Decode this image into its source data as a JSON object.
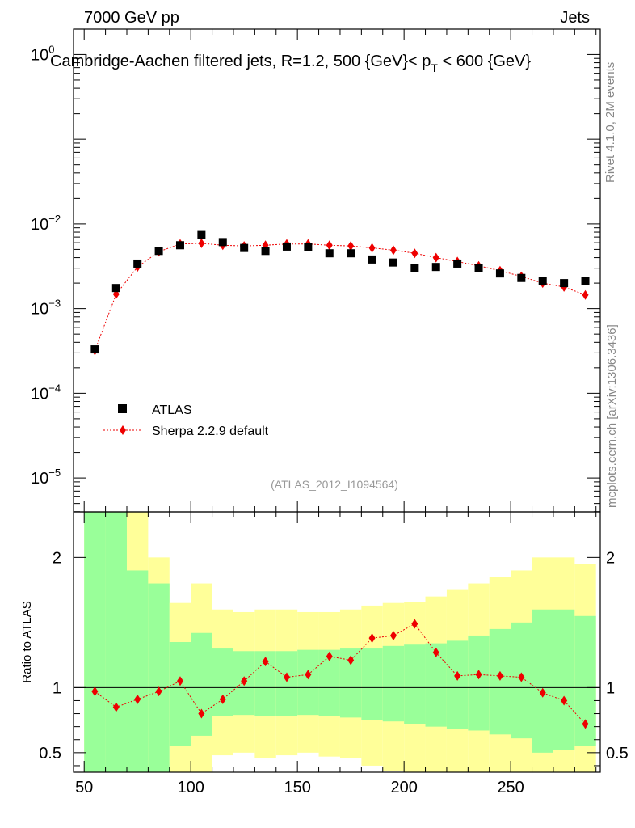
{
  "header": {
    "energy_label": "7000 GeV pp",
    "category_label": "Jets",
    "title_main": "Cambridge-Aachen filtered jets, R=1.2, 500 {GeV}< p",
    "title_sub": "T",
    "title_end": " < 600 {GeV}",
    "side_rivet": "Rivet 4.1.0,  2M events",
    "side_mcplots": "mcplots.cern.ch [arXiv:1306.3436]",
    "analysis_id": "(ATLAS_2012_I1094564)"
  },
  "legend": {
    "data_label": "ATLAS",
    "mc_label": "Sherpa 2.2.9 default"
  },
  "colors": {
    "data": "#000000",
    "mc": "#ee0000",
    "band_inner": "#99ff99",
    "band_outer": "#ffff99"
  },
  "chart_data": [
    {
      "type": "scatter",
      "name": "main",
      "xlim": [
        45,
        292
      ],
      "ylim_log10": [
        -5.4,
        0.3
      ],
      "yscale": "log",
      "y_ticks": [
        {
          "exp": 0,
          "base": "10",
          "sup": "0"
        },
        {
          "exp": -2,
          "base": "10",
          "sup": "−2"
        },
        {
          "exp": -3,
          "base": "10",
          "sup": "−3"
        },
        {
          "exp": -4,
          "base": "10",
          "sup": "−4"
        },
        {
          "exp": -5,
          "base": "10",
          "sup": "−5"
        }
      ],
      "series": [
        {
          "name": "ATLAS",
          "x": [
            55,
            65,
            75,
            85,
            95,
            105,
            115,
            125,
            135,
            145,
            155,
            165,
            175,
            185,
            195,
            205,
            215,
            225,
            235,
            245,
            255,
            265,
            275,
            285
          ],
          "values": [
            0.00033,
            0.00175,
            0.0034,
            0.0048,
            0.0056,
            0.0074,
            0.0061,
            0.0052,
            0.0048,
            0.0054,
            0.0053,
            0.0045,
            0.0045,
            0.0038,
            0.0035,
            0.003,
            0.0031,
            0.0034,
            0.003,
            0.0026,
            0.0023,
            0.0021,
            0.002,
            0.0021
          ]
        },
        {
          "name": "Sherpa 2.2.9 default",
          "x": [
            55,
            65,
            75,
            85,
            95,
            105,
            115,
            125,
            135,
            145,
            155,
            165,
            175,
            185,
            195,
            205,
            215,
            225,
            235,
            245,
            255,
            265,
            275,
            285
          ],
          "values": [
            0.00032,
            0.00148,
            0.0031,
            0.0047,
            0.0058,
            0.0059,
            0.0056,
            0.0055,
            0.0056,
            0.0058,
            0.0058,
            0.0056,
            0.0055,
            0.0052,
            0.0049,
            0.0045,
            0.004,
            0.0036,
            0.0032,
            0.0028,
            0.0024,
            0.002,
            0.0018,
            0.00145
          ]
        }
      ]
    },
    {
      "type": "scatter",
      "name": "ratio",
      "ylabel": "Ratio to ATLAS",
      "xlim": [
        45,
        292
      ],
      "ylim": [
        0.35,
        2.35
      ],
      "x_ticks": [
        "50",
        "100",
        "150",
        "200",
        "250"
      ],
      "y_ticks": [
        "0.5",
        "1",
        "2"
      ],
      "bin_edges": [
        50,
        60,
        70,
        80,
        90,
        100,
        110,
        120,
        130,
        140,
        150,
        160,
        170,
        180,
        190,
        200,
        210,
        220,
        230,
        240,
        250,
        260,
        270,
        280,
        290
      ],
      "band_inner_low": [
        0.3,
        0.3,
        0.3,
        0.3,
        0.55,
        0.63,
        0.78,
        0.79,
        0.78,
        0.78,
        0.79,
        0.78,
        0.77,
        0.75,
        0.74,
        0.72,
        0.7,
        0.68,
        0.67,
        0.64,
        0.61,
        0.5,
        0.52,
        0.55
      ],
      "band_inner_high": [
        2.35,
        2.35,
        1.9,
        1.8,
        1.35,
        1.42,
        1.3,
        1.28,
        1.28,
        1.28,
        1.29,
        1.29,
        1.3,
        1.3,
        1.32,
        1.33,
        1.34,
        1.36,
        1.4,
        1.45,
        1.5,
        1.6,
        1.6,
        1.55
      ],
      "band_outer_low": [
        0.3,
        0.3,
        0.3,
        0.3,
        0.3,
        0.3,
        0.48,
        0.5,
        0.46,
        0.48,
        0.5,
        0.47,
        0.46,
        0.4,
        0.36,
        0.33,
        0.3,
        0.3,
        0.3,
        0.3,
        0.3,
        0.3,
        0.3,
        0.3
      ],
      "band_outer_high": [
        2.35,
        2.35,
        2.35,
        2.0,
        1.65,
        1.8,
        1.6,
        1.58,
        1.6,
        1.6,
        1.58,
        1.58,
        1.6,
        1.63,
        1.65,
        1.66,
        1.7,
        1.75,
        1.8,
        1.85,
        1.9,
        2.0,
        2.0,
        1.95
      ],
      "series": [
        {
          "name": "Sherpa 2.2.9 default / ATLAS",
          "x": [
            55,
            65,
            75,
            85,
            95,
            105,
            115,
            125,
            135,
            145,
            155,
            165,
            175,
            185,
            195,
            205,
            215,
            225,
            235,
            245,
            255,
            265,
            275,
            285
          ],
          "values": [
            0.97,
            0.85,
            0.91,
            0.97,
            1.05,
            0.8,
            0.91,
            1.05,
            1.2,
            1.08,
            1.1,
            1.24,
            1.21,
            1.38,
            1.4,
            1.49,
            1.27,
            1.09,
            1.1,
            1.09,
            1.08,
            0.96,
            0.9,
            0.72
          ]
        }
      ]
    }
  ]
}
